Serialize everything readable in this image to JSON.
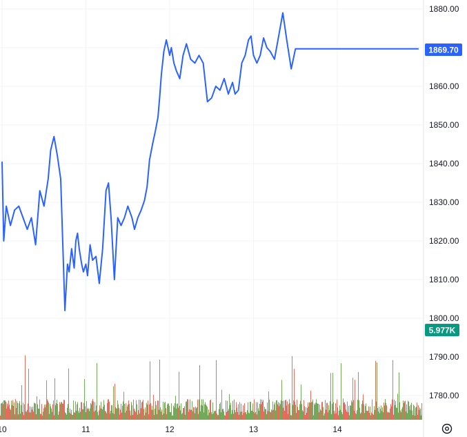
{
  "chart_data": {
    "type": "line",
    "title": "",
    "xlabel": "",
    "ylabel": "",
    "grid": true,
    "x_ticks": [
      "10",
      "11",
      "12",
      "13",
      "14"
    ],
    "y_ticks": [
      "1880.00",
      "1870.00",
      "1860.00",
      "1850.00",
      "1840.00",
      "1830.00",
      "1820.00",
      "1810.00",
      "1800.00",
      "1790.00",
      "1780.00"
    ],
    "ylim": [
      1775.5,
      1881.5
    ],
    "xlim": [
      10.0,
      14.97
    ],
    "last_price": {
      "value": 1869.7,
      "label": "1869.70",
      "color": "#2962ff"
    },
    "last_volume": {
      "label": "5.977K",
      "color": "#089981"
    },
    "price_color": "#2962ff",
    "volume_up_color": "#5b9a3c",
    "volume_down_color": "#e0523f",
    "price_series": {
      "name": "",
      "x": [
        10.0,
        10.02,
        10.05,
        10.1,
        10.15,
        10.2,
        10.25,
        10.3,
        10.35,
        10.4,
        10.45,
        10.5,
        10.55,
        10.58,
        10.62,
        10.66,
        10.7,
        10.75,
        10.78,
        10.8,
        10.83,
        10.86,
        10.88,
        10.9,
        10.92,
        10.95,
        10.97,
        11.0,
        11.02,
        11.05,
        11.08,
        11.12,
        11.16,
        11.2,
        11.24,
        11.27,
        11.3,
        11.34,
        11.38,
        11.42,
        11.46,
        11.5,
        11.55,
        11.58,
        11.62,
        11.66,
        11.7,
        11.73,
        11.76,
        11.8,
        11.83,
        11.86,
        11.88,
        11.9,
        11.93,
        11.96,
        11.98,
        12.0,
        12.02,
        12.05,
        12.08,
        12.12,
        12.16,
        12.2,
        12.25,
        12.3,
        12.35,
        12.4,
        12.45,
        12.5,
        12.55,
        12.6,
        12.65,
        12.7,
        12.75,
        12.78,
        12.82,
        12.86,
        12.9,
        12.94,
        12.97,
        13.0,
        13.04,
        13.08,
        13.12,
        13.16,
        13.2,
        13.25,
        13.3,
        13.35,
        13.4,
        13.45,
        13.5,
        13.55,
        13.6,
        13.65,
        13.7,
        13.74,
        13.78,
        13.82,
        13.86,
        13.9,
        13.94,
        13.98,
        14.0,
        14.04,
        14.08,
        14.12,
        14.16,
        14.2,
        14.25,
        14.3,
        14.35,
        14.4,
        14.45,
        14.5,
        14.55,
        14.6,
        14.65,
        14.7,
        14.75,
        14.8,
        14.84,
        14.86,
        14.88,
        14.91,
        14.94,
        14.97
      ],
      "values": [
        1840.5,
        1820.0,
        1829.0,
        1824.0,
        1828.0,
        1829.0,
        1826.0,
        1823.0,
        1826.0,
        1819.0,
        1833.0,
        1829.0,
        1836.0,
        1843.5,
        1847.0,
        1842.0,
        1836.0,
        1802.0,
        1814.0,
        1812.0,
        1818.0,
        1813.0,
        1820.0,
        1822.0,
        1818.0,
        1814.0,
        1812.0,
        1814.0,
        1811.0,
        1819.0,
        1815.0,
        1816.0,
        1809.0,
        1818.0,
        1833.0,
        1835.0,
        1826.0,
        1810.0,
        1826.0,
        1824.0,
        1826.0,
        1829.0,
        1826.0,
        1823.0,
        1826.0,
        1828.0,
        1830.5,
        1834.0,
        1841.0,
        1845.5,
        1848.5,
        1852.0,
        1857.0,
        1863.0,
        1869.0,
        1872.0,
        1870.0,
        1868.0,
        1870.0,
        1866.0,
        1864.0,
        1862.0,
        1868.0,
        1871.0,
        1867.0,
        1866.0,
        1868.0,
        1866.0,
        1856.0,
        1857.0,
        1860.0,
        1859.0,
        1862.0,
        1858.0,
        1861.0,
        1858.0,
        1859.0,
        1866.0,
        1868.0,
        1872.0,
        1873.0,
        1868.0,
        1866.0,
        1868.0,
        1872.5,
        1870.0,
        1869.0,
        1867.0,
        1873.0,
        1879.0,
        1871.5,
        1864.5,
        1869.7,
        1869.7,
        1869.7,
        1869.7,
        1869.7,
        1869.7,
        1869.7,
        1869.7,
        1869.7,
        1869.7,
        1869.7,
        1869.7,
        1869.7,
        1869.7,
        1869.7,
        1869.7,
        1869.7,
        1869.7,
        1869.7,
        1869.7,
        1869.7,
        1869.7,
        1869.7,
        1869.7,
        1869.7,
        1869.7,
        1869.7,
        1869.7,
        1869.7,
        1869.7,
        1869.7,
        1869.7,
        1869.7,
        1869.7,
        1869.7,
        1869.7
      ]
    }
  }
}
